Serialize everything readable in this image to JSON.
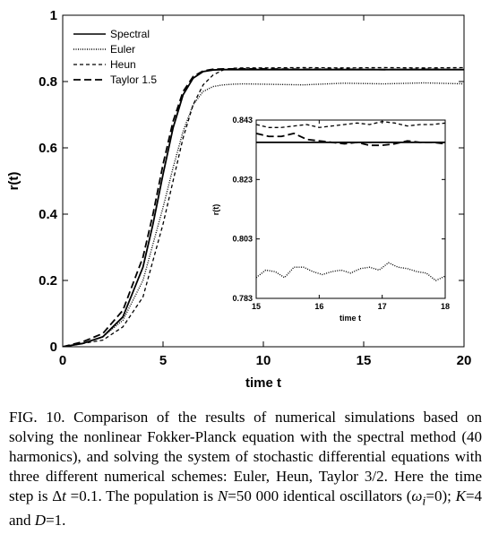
{
  "chart_data": [
    {
      "type": "line",
      "xlabel": "time t",
      "ylabel": "r(t)",
      "xlim": [
        0,
        20
      ],
      "ylim": [
        0,
        1
      ],
      "xticks": [
        0,
        5,
        10,
        15,
        20
      ],
      "yticks": [
        0,
        0.2,
        0.4,
        0.6,
        0.8,
        1
      ],
      "ytick_labels": [
        "0",
        "0.2",
        "0.4",
        "0.6",
        "0.8",
        "1"
      ],
      "legend_position": "top-left",
      "grid": false,
      "series": [
        {
          "name": "Spectral",
          "style": "solid",
          "x": [
            0,
            1,
            2,
            3,
            4,
            4.5,
            5,
            5.5,
            6,
            6.5,
            7,
            7.5,
            8,
            9,
            10,
            12,
            14,
            16,
            18,
            20
          ],
          "y": [
            0,
            0.01,
            0.03,
            0.09,
            0.24,
            0.37,
            0.52,
            0.66,
            0.76,
            0.81,
            0.83,
            0.835,
            0.836,
            0.836,
            0.836,
            0.836,
            0.836,
            0.836,
            0.836,
            0.836
          ]
        },
        {
          "name": "Euler",
          "style": "dotted",
          "x": [
            0,
            1,
            2,
            3,
            4,
            5,
            5.5,
            6,
            6.5,
            7,
            7.5,
            8,
            8.5,
            9,
            10,
            12,
            14,
            16,
            18,
            20
          ],
          "y": [
            0,
            0.01,
            0.03,
            0.08,
            0.2,
            0.42,
            0.54,
            0.65,
            0.73,
            0.77,
            0.785,
            0.79,
            0.792,
            0.793,
            0.792,
            0.79,
            0.795,
            0.793,
            0.796,
            0.793
          ]
        },
        {
          "name": "Heun",
          "style": "short-dash",
          "x": [
            0,
            1,
            2,
            3,
            4,
            5,
            5.5,
            6,
            6.5,
            7,
            7.5,
            8,
            8.5,
            9,
            10,
            12,
            14,
            16,
            18,
            20
          ],
          "y": [
            0,
            0.01,
            0.02,
            0.06,
            0.15,
            0.37,
            0.5,
            0.63,
            0.73,
            0.79,
            0.82,
            0.835,
            0.84,
            0.841,
            0.841,
            0.842,
            0.841,
            0.842,
            0.841,
            0.842
          ]
        },
        {
          "name": "Taylor 1.5",
          "style": "long-dash",
          "x": [
            0,
            1,
            2,
            3,
            4,
            4.5,
            5,
            5.5,
            6,
            6.5,
            7,
            7.5,
            8,
            9,
            10,
            12,
            14,
            16,
            18,
            20
          ],
          "y": [
            0,
            0.015,
            0.04,
            0.11,
            0.27,
            0.4,
            0.55,
            0.68,
            0.77,
            0.815,
            0.832,
            0.837,
            0.838,
            0.838,
            0.838,
            0.837,
            0.837,
            0.836,
            0.837,
            0.836
          ]
        }
      ]
    },
    {
      "type": "line",
      "xlabel": "time t",
      "ylabel": "r(t)",
      "xlim": [
        15,
        18
      ],
      "ylim": [
        0.783,
        0.843
      ],
      "xticks": [
        15,
        16,
        17,
        18
      ],
      "yticks": [
        0.783,
        0.803,
        0.823,
        0.843
      ],
      "ytick_labels": [
        "0.783",
        "0.803",
        "0.823",
        "0.843"
      ],
      "series": [
        {
          "name": "Spectral",
          "style": "solid",
          "x": [
            15,
            15.5,
            16,
            16.5,
            17,
            17.5,
            18
          ],
          "y": [
            0.8355,
            0.8355,
            0.8355,
            0.8355,
            0.8355,
            0.8355,
            0.8355
          ]
        },
        {
          "name": "Euler",
          "style": "dotted",
          "x": [
            15,
            15.15,
            15.3,
            15.45,
            15.6,
            15.75,
            15.9,
            16.05,
            16.2,
            16.35,
            16.5,
            16.65,
            16.8,
            16.95,
            17.1,
            17.25,
            17.4,
            17.55,
            17.7,
            17.85,
            18
          ],
          "y": [
            0.79,
            0.7925,
            0.792,
            0.79,
            0.7935,
            0.7935,
            0.792,
            0.791,
            0.792,
            0.7925,
            0.7915,
            0.793,
            0.7935,
            0.7925,
            0.795,
            0.7935,
            0.793,
            0.792,
            0.7915,
            0.789,
            0.7905
          ]
        },
        {
          "name": "Heun",
          "style": "short-dash",
          "x": [
            15,
            15.2,
            15.4,
            15.6,
            15.8,
            16,
            16.2,
            16.4,
            16.6,
            16.8,
            17,
            17.2,
            17.4,
            17.6,
            17.8,
            18
          ],
          "y": [
            0.8415,
            0.8405,
            0.8405,
            0.841,
            0.8415,
            0.8405,
            0.841,
            0.8415,
            0.842,
            0.8415,
            0.8425,
            0.842,
            0.841,
            0.8415,
            0.8415,
            0.842
          ]
        },
        {
          "name": "Taylor 1.5",
          "style": "long-dash",
          "x": [
            15,
            15.2,
            15.4,
            15.6,
            15.8,
            16,
            16.2,
            16.4,
            16.6,
            16.8,
            17,
            17.2,
            17.4,
            17.6,
            17.8,
            18
          ],
          "y": [
            0.8385,
            0.8375,
            0.8375,
            0.8385,
            0.8365,
            0.836,
            0.8355,
            0.835,
            0.8355,
            0.8345,
            0.8345,
            0.835,
            0.836,
            0.8355,
            0.8355,
            0.835
          ]
        }
      ]
    }
  ],
  "caption": {
    "p1": "FIG. 10. Comparison of the results of numerical simulations based on solving the nonlinear Fokker-Planck equation with the spectral method (40 harmonics), and solving the system of stochastic differential equations with three different numerical schemes: Euler, Heun, Taylor 3/2. Here the time step is Δ",
    "t_var": "t",
    "p2": " =0.1. The population is ",
    "n_var": "N",
    "p3": "=50 000 identical oscillators (",
    "omega_var": "ω",
    "omega_sub": "i",
    "p4": "=0); ",
    "k_var": "K",
    "p5": "=4 and ",
    "d_var": "D",
    "p6": "=1."
  }
}
